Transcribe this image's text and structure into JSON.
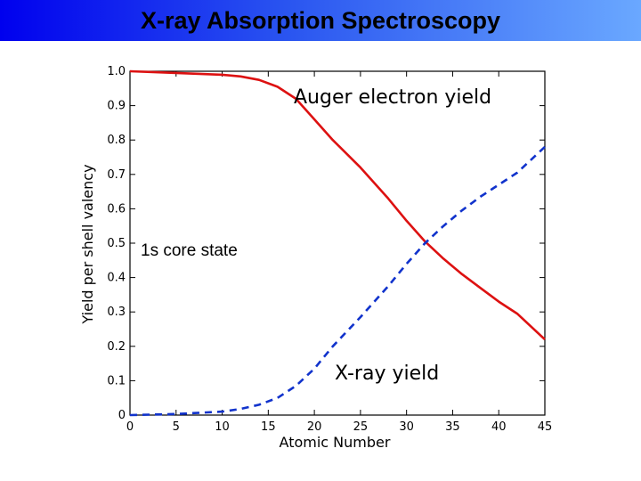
{
  "slide": {
    "title": "X-ray Absorption Spectroscopy",
    "colors": {
      "title_bar_start": "#0000ee",
      "title_bar_end": "#6aa8ff"
    }
  },
  "chart_data": {
    "type": "line",
    "title": "",
    "xlabel": "Atomic Number",
    "ylabel": "Yield per shell valency",
    "xlim": [
      0,
      45
    ],
    "ylim": [
      0,
      1.0
    ],
    "xticks": [
      "0",
      "5",
      "10",
      "15",
      "20",
      "25",
      "30",
      "35",
      "40",
      "45"
    ],
    "yticks": [
      "0",
      "0.1",
      "0.2",
      "0.3",
      "0.4",
      "0.5",
      "0.6",
      "0.7",
      "0.8",
      "0.9",
      "1.0"
    ],
    "grid": false,
    "annotation": "1s core state",
    "series": [
      {
        "name": "Auger electron yield",
        "color": "#dd1111",
        "style": "solid",
        "x": [
          0,
          5,
          10,
          12,
          14,
          16,
          18,
          20,
          22,
          25,
          28,
          30,
          32,
          34,
          36,
          38,
          40,
          42,
          45
        ],
        "y": [
          1.0,
          0.995,
          0.99,
          0.985,
          0.975,
          0.955,
          0.92,
          0.86,
          0.8,
          0.72,
          0.63,
          0.565,
          0.505,
          0.455,
          0.41,
          0.37,
          0.33,
          0.295,
          0.22
        ]
      },
      {
        "name": "X-ray yield",
        "color": "#1133cc",
        "style": "dashed",
        "x": [
          0,
          5,
          10,
          12,
          14,
          16,
          18,
          20,
          22,
          25,
          28,
          30,
          32,
          34,
          36,
          38,
          40,
          42,
          45
        ],
        "y": [
          0.0,
          0.003,
          0.01,
          0.018,
          0.03,
          0.05,
          0.085,
          0.135,
          0.2,
          0.285,
          0.375,
          0.44,
          0.5,
          0.55,
          0.595,
          0.635,
          0.67,
          0.705,
          0.78
        ]
      }
    ]
  }
}
